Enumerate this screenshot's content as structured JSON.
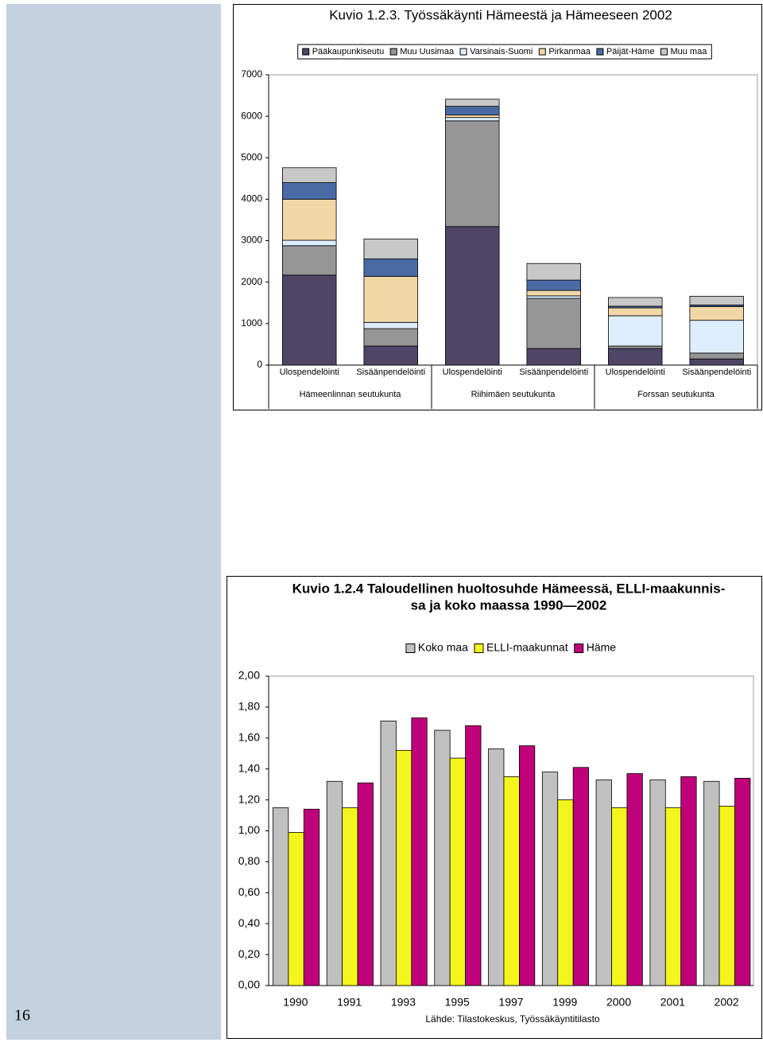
{
  "page_number": "16",
  "chart_data": [
    {
      "type": "stacked_bar",
      "title": "Kuvio 1.2.3. Työssäkäynti Hämeestä ja Hämeeseen 2002",
      "categories": [
        "Ulospendelöinti",
        "Sisäänpendelöinti",
        "Ulospendelöinti",
        "Sisäänpendelöinti",
        "Ulospendelöinti",
        "Sisäänpendelöinti"
      ],
      "groups": [
        "Hämeenlinnan seutukunta",
        "Riihimäen seutukunta",
        "Forssan seutukunta"
      ],
      "series": [
        {
          "name": "Pääkaupunkiseutu",
          "color": "#4f4566",
          "values": [
            2170,
            460,
            3340,
            400,
            400,
            150
          ]
        },
        {
          "name": "Muu Uusimaa",
          "color": "#969696",
          "values": [
            710,
            420,
            2550,
            1210,
            60,
            140
          ]
        },
        {
          "name": "Varsinais-Suomi",
          "color": "#ddeeff",
          "values": [
            130,
            150,
            80,
            60,
            730,
            790
          ]
        },
        {
          "name": "Pirkanmaa",
          "color": "#f2d7a6",
          "values": [
            990,
            1110,
            60,
            130,
            190,
            330
          ]
        },
        {
          "name": "Päijät-Häme",
          "color": "#4a6aa5",
          "values": [
            400,
            420,
            210,
            250,
            40,
            40
          ]
        },
        {
          "name": "Muu maa",
          "color": "#c8c8c8",
          "values": [
            360,
            480,
            170,
            400,
            210,
            210
          ]
        }
      ],
      "ylim": [
        0,
        7000
      ],
      "yticks": [
        0,
        1000,
        2000,
        3000,
        4000,
        5000,
        6000,
        7000
      ]
    },
    {
      "type": "bar",
      "title": [
        "Kuvio 1.2.4 Taloudellinen huoltosuhde Hämeessä, ELLI-maakunnis-",
        "sa ja koko maassa 1990—2002"
      ],
      "categories": [
        "1990",
        "1991",
        "1993",
        "1995",
        "1997",
        "1999",
        "2000",
        "2001",
        "2002"
      ],
      "series": [
        {
          "name": "Koko maa",
          "color": "#c0c0c0",
          "values": [
            1.15,
            1.32,
            1.71,
            1.65,
            1.53,
            1.38,
            1.33,
            1.33,
            1.32
          ]
        },
        {
          "name": "ELLI-maakunnat",
          "color": "#f5f51e",
          "values": [
            0.99,
            1.15,
            1.52,
            1.47,
            1.35,
            1.2,
            1.15,
            1.15,
            1.16
          ]
        },
        {
          "name": "Häme",
          "color": "#c0007a",
          "values": [
            1.14,
            1.31,
            1.73,
            1.68,
            1.55,
            1.41,
            1.37,
            1.35,
            1.34
          ]
        }
      ],
      "ylim": [
        0,
        2
      ],
      "yticks": [
        {
          "value": 0,
          "label": "0,00"
        },
        {
          "value": 0.2,
          "label": "0,20"
        },
        {
          "value": 0.4,
          "label": "0,40"
        },
        {
          "value": 0.6,
          "label": "0,60"
        },
        {
          "value": 0.8,
          "label": "0,80"
        },
        {
          "value": 1,
          "label": "1,00"
        },
        {
          "value": 1.2,
          "label": "1,20"
        },
        {
          "value": 1.4,
          "label": "1,40"
        },
        {
          "value": 1.6,
          "label": "1,60"
        },
        {
          "value": 1.8,
          "label": "1,80"
        },
        {
          "value": 2,
          "label": "2,00"
        }
      ],
      "source": "Lähde: Tilastokeskus, Työssäkäyntitilasto"
    }
  ]
}
